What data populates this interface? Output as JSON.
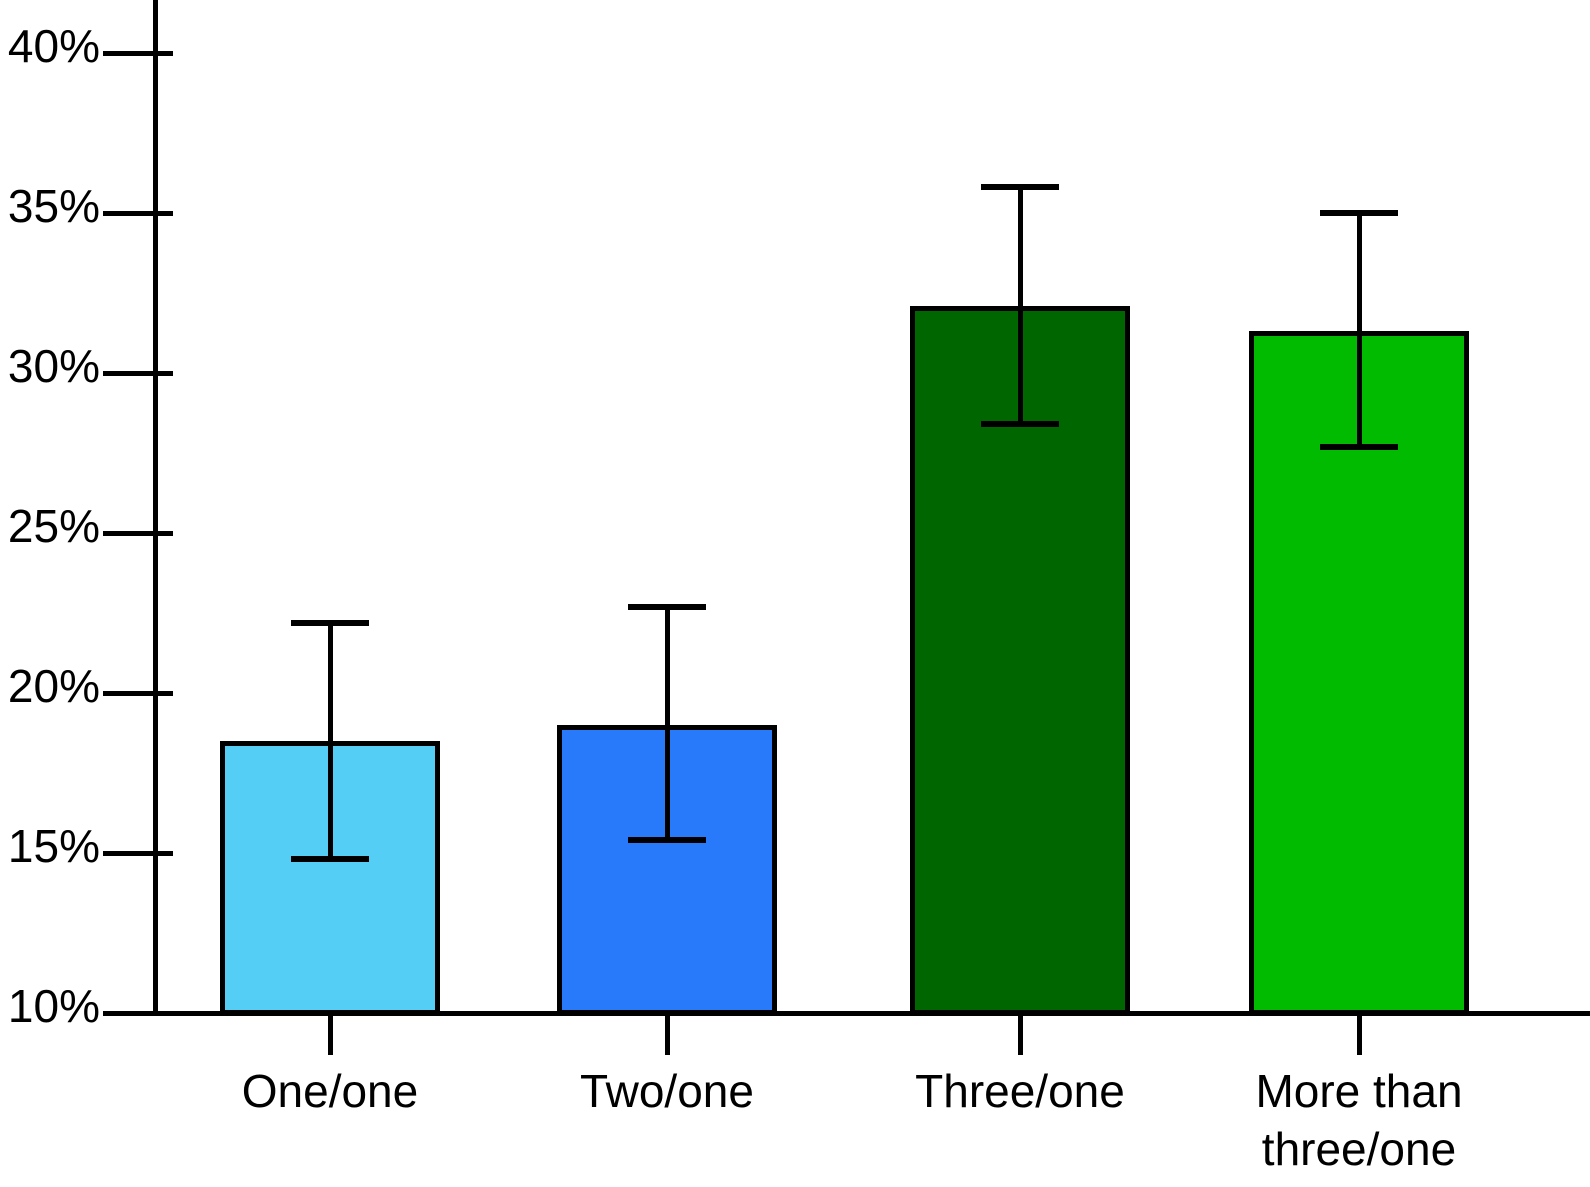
{
  "chart_data": {
    "type": "bar",
    "title": "",
    "xlabel": "",
    "ylabel": "",
    "categories": [
      "One/one",
      "Two/one",
      "Three/one",
      "More than\nthree/one"
    ],
    "values": [
      18.5,
      19.0,
      32.1,
      31.3
    ],
    "error_high": [
      22.2,
      22.7,
      35.8,
      35.0
    ],
    "error_low": [
      14.8,
      15.4,
      28.4,
      27.7
    ],
    "bar_colors": [
      "#55CEF5",
      "#2979FB",
      "#006600",
      "#00BB00"
    ],
    "ylim": [
      10,
      41.7
    ],
    "yticks": [
      10,
      15,
      20,
      25,
      30,
      35,
      40
    ],
    "ytick_labels": [
      "10%",
      "15%",
      "20%",
      "25%",
      "30%",
      "35%",
      "40%"
    ],
    "grid": false,
    "legend": null,
    "error_bars": true
  },
  "colors": {
    "axis": "#000000",
    "text": "#000000",
    "background": "#FFFFFF"
  }
}
